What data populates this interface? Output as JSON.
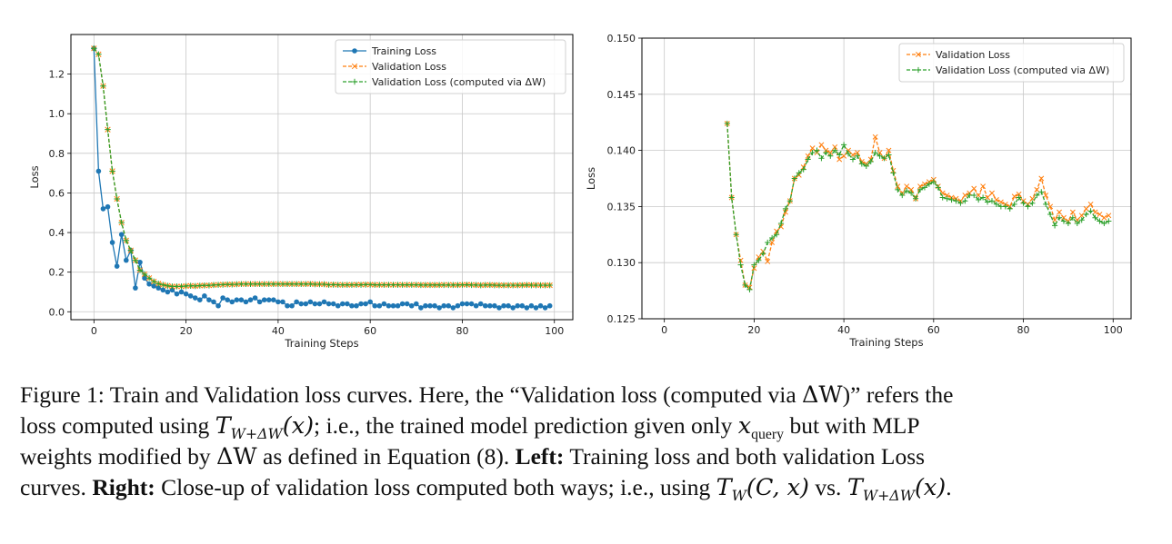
{
  "colors": {
    "training": "#1f77b4",
    "validation": "#ff7f0e",
    "validation_dw": "#2ca02c",
    "grid": "#c8c8c8",
    "axis": "#000000"
  },
  "chart_data": [
    {
      "type": "line",
      "title": "",
      "xlabel": "Training Steps",
      "ylabel": "Loss",
      "xlim": [
        -5,
        104
      ],
      "ylim": [
        -0.04,
        1.4
      ],
      "xticks": [
        0,
        20,
        40,
        60,
        80,
        100
      ],
      "yticks": [
        0.0,
        0.2,
        0.4,
        0.6,
        0.8,
        1.0,
        1.2
      ],
      "ytick_labels": [
        "0.0",
        "0.2",
        "0.4",
        "0.6",
        "0.8",
        "1.0",
        "1.2"
      ],
      "grid": true,
      "legend_position": "top-right",
      "series": [
        {
          "name": "Training Loss",
          "color": "#1f77b4",
          "marker": "circle",
          "linestyle": "solid",
          "x": [
            0,
            1,
            2,
            3,
            4,
            5,
            6,
            7,
            8,
            9,
            10,
            11,
            12,
            13,
            14,
            15,
            16,
            17,
            18,
            19,
            20,
            21,
            22,
            23,
            24,
            25,
            26,
            27,
            28,
            29,
            30,
            31,
            32,
            33,
            34,
            35,
            36,
            37,
            38,
            39,
            40,
            41,
            42,
            43,
            44,
            45,
            46,
            47,
            48,
            49,
            50,
            51,
            52,
            53,
            54,
            55,
            56,
            57,
            58,
            59,
            60,
            61,
            62,
            63,
            64,
            65,
            66,
            67,
            68,
            69,
            70,
            71,
            72,
            73,
            74,
            75,
            76,
            77,
            78,
            79,
            80,
            81,
            82,
            83,
            84,
            85,
            86,
            87,
            88,
            89,
            90,
            91,
            92,
            93,
            94,
            95,
            96,
            97,
            98,
            99
          ],
          "y": [
            1.33,
            0.71,
            0.52,
            0.53,
            0.35,
            0.23,
            0.39,
            0.26,
            0.31,
            0.12,
            0.25,
            0.17,
            0.14,
            0.13,
            0.12,
            0.11,
            0.1,
            0.11,
            0.09,
            0.1,
            0.09,
            0.08,
            0.07,
            0.06,
            0.08,
            0.06,
            0.05,
            0.03,
            0.07,
            0.06,
            0.05,
            0.06,
            0.06,
            0.05,
            0.06,
            0.07,
            0.05,
            0.06,
            0.06,
            0.06,
            0.05,
            0.05,
            0.03,
            0.03,
            0.05,
            0.04,
            0.04,
            0.05,
            0.04,
            0.04,
            0.05,
            0.04,
            0.04,
            0.03,
            0.04,
            0.04,
            0.03,
            0.03,
            0.04,
            0.04,
            0.05,
            0.03,
            0.03,
            0.04,
            0.03,
            0.03,
            0.03,
            0.04,
            0.04,
            0.03,
            0.04,
            0.02,
            0.03,
            0.03,
            0.03,
            0.02,
            0.03,
            0.03,
            0.02,
            0.03,
            0.04,
            0.04,
            0.04,
            0.03,
            0.04,
            0.03,
            0.03,
            0.03,
            0.02,
            0.03,
            0.03,
            0.02,
            0.03,
            0.03,
            0.02,
            0.03,
            0.02,
            0.03,
            0.02,
            0.03
          ]
        },
        {
          "name": "Validation Loss",
          "color": "#ff7f0e",
          "marker": "x",
          "linestyle": "dashed",
          "x": [
            0,
            1,
            2,
            3,
            4,
            5,
            6,
            7,
            8,
            9,
            10,
            11,
            12,
            13,
            14,
            15,
            16,
            17,
            18,
            19,
            20,
            21,
            22,
            23,
            24,
            25,
            26,
            27,
            28,
            29,
            30,
            31,
            32,
            33,
            34,
            35,
            36,
            37,
            38,
            39,
            40,
            41,
            42,
            43,
            44,
            45,
            46,
            47,
            48,
            49,
            50,
            51,
            52,
            53,
            54,
            55,
            56,
            57,
            58,
            59,
            60,
            61,
            62,
            63,
            64,
            65,
            66,
            67,
            68,
            69,
            70,
            71,
            72,
            73,
            74,
            75,
            76,
            77,
            78,
            79,
            80,
            81,
            82,
            83,
            84,
            85,
            86,
            87,
            88,
            89,
            90,
            91,
            92,
            93,
            94,
            95,
            96,
            97,
            98,
            99
          ],
          "y": [
            1.33,
            1.3,
            1.14,
            0.92,
            0.71,
            0.57,
            0.45,
            0.36,
            0.31,
            0.26,
            0.21,
            0.19,
            0.17,
            0.153,
            0.142,
            0.136,
            0.131,
            0.128,
            0.128,
            0.128,
            0.13,
            0.131,
            0.13,
            0.132,
            0.133,
            0.133,
            0.135,
            0.136,
            0.137,
            0.138,
            0.138,
            0.139,
            0.14,
            0.14,
            0.14,
            0.14,
            0.14,
            0.14,
            0.14,
            0.14,
            0.14,
            0.14,
            0.14,
            0.14,
            0.14,
            0.14,
            0.14,
            0.141,
            0.139,
            0.139,
            0.139,
            0.136,
            0.137,
            0.136,
            0.136,
            0.136,
            0.136,
            0.137,
            0.137,
            0.137,
            0.137,
            0.136,
            0.136,
            0.136,
            0.136,
            0.136,
            0.136,
            0.136,
            0.136,
            0.136,
            0.136,
            0.135,
            0.135,
            0.135,
            0.135,
            0.135,
            0.136,
            0.136,
            0.135,
            0.135,
            0.136,
            0.137,
            0.136,
            0.135,
            0.134,
            0.135,
            0.135,
            0.135,
            0.134,
            0.134,
            0.134,
            0.134,
            0.134,
            0.135,
            0.135,
            0.135,
            0.135,
            0.134,
            0.134,
            0.134
          ]
        },
        {
          "name": "Validation Loss (computed via ΔW)",
          "color": "#2ca02c",
          "marker": "plus",
          "linestyle": "dashed",
          "x": [
            0,
            1,
            2,
            3,
            4,
            5,
            6,
            7,
            8,
            9,
            10,
            11,
            12,
            13,
            14,
            15,
            16,
            17,
            18,
            19,
            20,
            21,
            22,
            23,
            24,
            25,
            26,
            27,
            28,
            29,
            30,
            31,
            32,
            33,
            34,
            35,
            36,
            37,
            38,
            39,
            40,
            41,
            42,
            43,
            44,
            45,
            46,
            47,
            48,
            49,
            50,
            51,
            52,
            53,
            54,
            55,
            56,
            57,
            58,
            59,
            60,
            61,
            62,
            63,
            64,
            65,
            66,
            67,
            68,
            69,
            70,
            71,
            72,
            73,
            74,
            75,
            76,
            77,
            78,
            79,
            80,
            81,
            82,
            83,
            84,
            85,
            86,
            87,
            88,
            89,
            90,
            91,
            92,
            93,
            94,
            95,
            96,
            97,
            98,
            99
          ],
          "y": [
            1.33,
            1.3,
            1.14,
            0.92,
            0.71,
            0.57,
            0.45,
            0.36,
            0.31,
            0.26,
            0.21,
            0.19,
            0.17,
            0.153,
            0.142,
            0.136,
            0.131,
            0.128,
            0.128,
            0.128,
            0.13,
            0.131,
            0.13,
            0.132,
            0.133,
            0.133,
            0.135,
            0.136,
            0.137,
            0.138,
            0.138,
            0.139,
            0.14,
            0.14,
            0.14,
            0.14,
            0.14,
            0.14,
            0.14,
            0.14,
            0.14,
            0.14,
            0.14,
            0.14,
            0.14,
            0.14,
            0.14,
            0.14,
            0.139,
            0.139,
            0.139,
            0.136,
            0.137,
            0.136,
            0.136,
            0.136,
            0.136,
            0.136,
            0.136,
            0.137,
            0.137,
            0.136,
            0.136,
            0.136,
            0.136,
            0.136,
            0.136,
            0.136,
            0.136,
            0.136,
            0.136,
            0.135,
            0.135,
            0.135,
            0.135,
            0.135,
            0.135,
            0.135,
            0.135,
            0.135,
            0.136,
            0.136,
            0.135,
            0.135,
            0.134,
            0.135,
            0.135,
            0.134,
            0.134,
            0.134,
            0.134,
            0.134,
            0.134,
            0.134,
            0.135,
            0.134,
            0.134,
            0.134,
            0.134,
            0.134
          ]
        }
      ]
    },
    {
      "type": "line",
      "title": "",
      "xlabel": "Training Steps",
      "ylabel": "Loss",
      "xlim": [
        -5,
        104
      ],
      "ylim": [
        0.125,
        0.15
      ],
      "xticks": [
        0,
        20,
        40,
        60,
        80,
        100
      ],
      "yticks": [
        0.125,
        0.13,
        0.135,
        0.14,
        0.145,
        0.15
      ],
      "ytick_labels": [
        "0.125",
        "0.130",
        "0.135",
        "0.140",
        "0.145",
        "0.150"
      ],
      "grid": true,
      "legend_position": "top-right",
      "series": [
        {
          "name": "Validation Loss",
          "color": "#ff7f0e",
          "marker": "x",
          "linestyle": "dashed",
          "x": [
            14,
            15,
            16,
            17,
            18,
            19,
            20,
            21,
            22,
            23,
            24,
            25,
            26,
            27,
            28,
            29,
            30,
            31,
            32,
            33,
            34,
            35,
            36,
            37,
            38,
            39,
            40,
            41,
            42,
            43,
            44,
            45,
            46,
            47,
            48,
            49,
            50,
            51,
            52,
            53,
            54,
            55,
            56,
            57,
            58,
            59,
            60,
            61,
            62,
            63,
            64,
            65,
            66,
            67,
            68,
            69,
            70,
            71,
            72,
            73,
            74,
            75,
            76,
            77,
            78,
            79,
            80,
            81,
            82,
            83,
            84,
            85,
            86,
            87,
            88,
            89,
            90,
            91,
            92,
            93,
            94,
            95,
            96,
            97,
            98,
            99
          ],
          "y": [
            0.1424,
            0.1358,
            0.1325,
            0.1302,
            0.128,
            0.1278,
            0.1295,
            0.1305,
            0.131,
            0.1301,
            0.1318,
            0.1328,
            0.1332,
            0.1345,
            0.1355,
            0.1375,
            0.1378,
            0.1385,
            0.1395,
            0.1402,
            0.1398,
            0.1405,
            0.14,
            0.1398,
            0.1403,
            0.1392,
            0.1395,
            0.14,
            0.1396,
            0.1398,
            0.139,
            0.1388,
            0.1392,
            0.1412,
            0.1398,
            0.1393,
            0.14,
            0.1382,
            0.1368,
            0.1362,
            0.1368,
            0.1365,
            0.1357,
            0.1368,
            0.137,
            0.1372,
            0.1374,
            0.1368,
            0.1362,
            0.136,
            0.1358,
            0.1357,
            0.1355,
            0.136,
            0.1362,
            0.1366,
            0.136,
            0.1368,
            0.1358,
            0.1362,
            0.1356,
            0.1354,
            0.1352,
            0.135,
            0.1359,
            0.1361,
            0.1355,
            0.1352,
            0.1357,
            0.1365,
            0.1375,
            0.136,
            0.135,
            0.1338,
            0.1345,
            0.134,
            0.1337,
            0.1345,
            0.1338,
            0.1342,
            0.1348,
            0.1352,
            0.1345,
            0.1343,
            0.134,
            0.1342
          ]
        },
        {
          "name": "Validation Loss (computed via ΔW)",
          "color": "#2ca02c",
          "marker": "plus",
          "linestyle": "dashed",
          "x": [
            14,
            15,
            16,
            17,
            18,
            19,
            20,
            21,
            22,
            23,
            24,
            25,
            26,
            27,
            28,
            29,
            30,
            31,
            32,
            33,
            34,
            35,
            36,
            37,
            38,
            39,
            40,
            41,
            42,
            43,
            44,
            45,
            46,
            47,
            48,
            49,
            50,
            51,
            52,
            53,
            54,
            55,
            56,
            57,
            58,
            59,
            60,
            61,
            62,
            63,
            64,
            65,
            66,
            67,
            68,
            69,
            70,
            71,
            72,
            73,
            74,
            75,
            76,
            77,
            78,
            79,
            80,
            81,
            82,
            83,
            84,
            85,
            86,
            87,
            88,
            89,
            90,
            91,
            92,
            93,
            94,
            95,
            96,
            97,
            98,
            99
          ],
          "y": [
            0.1424,
            0.1358,
            0.1325,
            0.1298,
            0.128,
            0.1276,
            0.1298,
            0.1302,
            0.1308,
            0.1318,
            0.1322,
            0.1325,
            0.1335,
            0.1348,
            0.1355,
            0.1375,
            0.138,
            0.1383,
            0.1392,
            0.1398,
            0.14,
            0.1393,
            0.1398,
            0.1395,
            0.14,
            0.1396,
            0.1405,
            0.1397,
            0.1392,
            0.1395,
            0.1388,
            0.1386,
            0.139,
            0.1398,
            0.1395,
            0.1393,
            0.1396,
            0.138,
            0.1365,
            0.136,
            0.1364,
            0.1362,
            0.1357,
            0.1365,
            0.1367,
            0.137,
            0.1372,
            0.1367,
            0.1358,
            0.1357,
            0.1356,
            0.1355,
            0.1353,
            0.1355,
            0.136,
            0.136,
            0.1356,
            0.1358,
            0.1354,
            0.1355,
            0.1352,
            0.135,
            0.135,
            0.1348,
            0.1352,
            0.1358,
            0.1353,
            0.135,
            0.1353,
            0.136,
            0.1363,
            0.1352,
            0.1343,
            0.1333,
            0.134,
            0.1337,
            0.1335,
            0.134,
            0.1335,
            0.1338,
            0.1343,
            0.1346,
            0.134,
            0.1337,
            0.1335,
            0.1337
          ]
        }
      ]
    }
  ],
  "caption": {
    "p1": "Figure 1: Train and Validation loss curves. Here, the “Validation loss (computed via ",
    "dw": "ΔW",
    "p2": ")” refers the",
    "p3": "loss computed using ",
    "t": "T",
    "sub1": "W+ΔW",
    "arg1": "(x)",
    "p4": "; i.e., the trained model prediction given only ",
    "xq": "x",
    "xq_sub": "query",
    "p5": " but with MLP",
    "p6": "weights modified by ",
    "dw2": "ΔW",
    "p7": " as defined in Equation (8). ",
    "left_label": "Left:",
    "p8": " Training loss and both validation Loss",
    "p9": "curves. ",
    "right_label": "Right:",
    "p10": " Close-up of validation loss computed both ways; i.e., using ",
    "t2": "T",
    "sub2": "W",
    "arg2": "(C, x)",
    "p11": " vs. ",
    "t3": "T",
    "sub3": "W+ΔW",
    "arg3": "(x)",
    "p12": "."
  }
}
